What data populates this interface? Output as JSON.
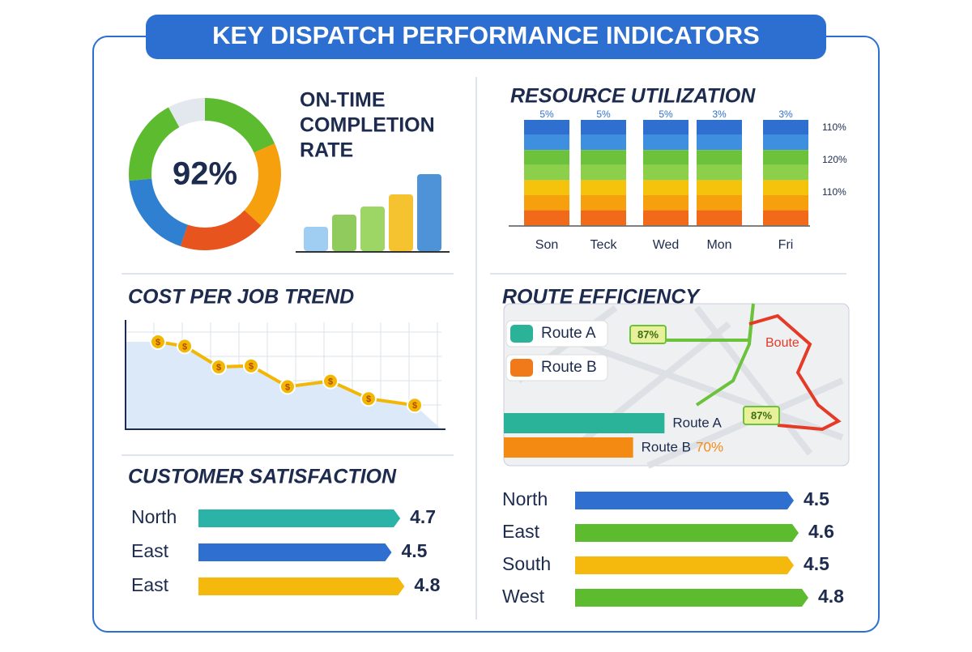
{
  "title": "KEY DISPATCH PERFORMANCE INDICATORS",
  "on_time": {
    "title_lines": [
      "ON-TIME",
      "COMPLETION",
      "RATE"
    ],
    "value": 92,
    "value_label": "92%",
    "color": "#2f80d0"
  },
  "resource": {
    "title": "RESOURCE UTILIZATION",
    "categories": [
      "Son",
      "Teck",
      "Wed",
      "Mon",
      "Fri"
    ],
    "top_labels": [
      "5%",
      "5%",
      "5%",
      "3%",
      "3%"
    ],
    "axis_labels": [
      "110%",
      "120%",
      "110%"
    ]
  },
  "cost_trend": {
    "title": "COST PER JOB TREND",
    "values": [
      8.0,
      7.6,
      5.7,
      5.8,
      3.9,
      4.4,
      2.8,
      2.2
    ],
    "marker_label": "$",
    "ylim": [
      0,
      10
    ],
    "color": "#f2b705"
  },
  "route_efficiency": {
    "title": "ROUTE EFFICIENCY",
    "legend": [
      {
        "name": "Route A",
        "color": "#2bb39a"
      },
      {
        "name": "Route B",
        "color": "#f07a1a"
      }
    ],
    "map_label": "Boute",
    "bars": [
      {
        "name": "Route A",
        "value": 87,
        "value_label": "87%",
        "color": "#2bb39a"
      },
      {
        "name": "Route B",
        "value": 70,
        "value_label": "70%",
        "color": "#f58a12"
      }
    ],
    "xlim": [
      0,
      100
    ]
  },
  "satisfaction": {
    "title": "CUSTOMER SATISFACTION",
    "xlim": [
      0,
      5
    ],
    "left": [
      {
        "name": "North",
        "value": 4.7,
        "color": "#2bb3a8"
      },
      {
        "name": "East",
        "value": 4.5,
        "color": "#2f6fd0"
      },
      {
        "name": "East",
        "value": 4.8,
        "color": "#f5b80c"
      }
    ],
    "right": [
      {
        "name": "North",
        "value": 4.5,
        "color": "#2f6fd0"
      },
      {
        "name": "East",
        "value": 4.6,
        "color": "#5dbb2f"
      },
      {
        "name": "South",
        "value": 4.5,
        "color": "#f5b80c"
      },
      {
        "name": "West",
        "value": 4.8,
        "color": "#5dbb2f"
      }
    ]
  }
}
